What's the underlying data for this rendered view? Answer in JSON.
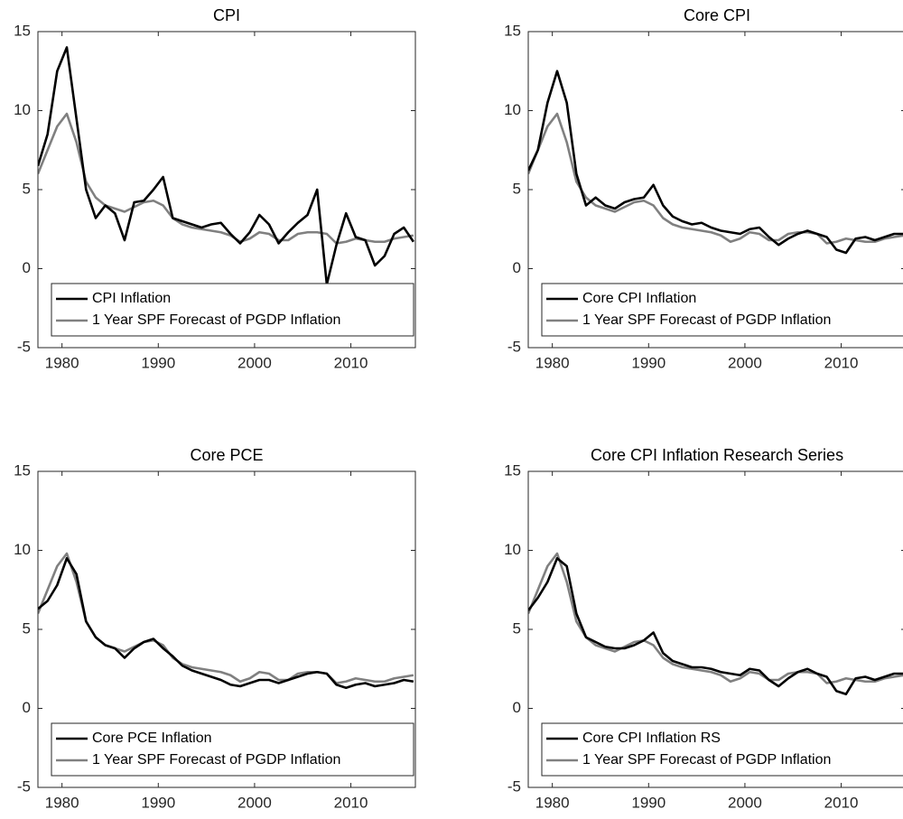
{
  "chart_data": [
    {
      "type": "line",
      "title": "CPI",
      "x": [
        1977.5,
        1978.5,
        1979.5,
        1980.5,
        1981.5,
        1982.5,
        1983.5,
        1984.5,
        1985.5,
        1986.5,
        1987.5,
        1988.5,
        1989.5,
        1990.5,
        1991.5,
        1992.5,
        1993.5,
        1994.5,
        1995.5,
        1996.5,
        1997.5,
        1998.5,
        1999.5,
        2000.5,
        2001.5,
        2002.5,
        2003.5,
        2004.5,
        2005.5,
        2006.5,
        2007.5,
        2008.5,
        2009.5,
        2010.5,
        2011.5,
        2012.5,
        2013.5,
        2014.5,
        2015.5,
        2016.5
      ],
      "series": [
        {
          "name": "CPI Inflation",
          "color": "#000000",
          "values": [
            6.5,
            8.5,
            12.5,
            14.0,
            9.5,
            5.0,
            3.2,
            4.0,
            3.5,
            1.8,
            4.2,
            4.3,
            5.0,
            5.8,
            3.2,
            3.0,
            2.8,
            2.6,
            2.8,
            2.9,
            2.2,
            1.6,
            2.3,
            3.4,
            2.8,
            1.6,
            2.3,
            2.9,
            3.4,
            5.0,
            -1.0,
            1.5,
            3.5,
            2.0,
            1.8,
            0.2,
            0.8,
            2.2,
            2.6,
            1.7
          ]
        },
        {
          "name": "1 Year SPF Forecast of PGDP Inflation",
          "color": "#808080",
          "values": [
            6.0,
            7.5,
            9.0,
            9.8,
            8.0,
            5.5,
            4.5,
            4.0,
            3.8,
            3.6,
            3.9,
            4.2,
            4.3,
            4.0,
            3.2,
            2.8,
            2.6,
            2.5,
            2.4,
            2.3,
            2.1,
            1.7,
            1.9,
            2.3,
            2.2,
            1.8,
            1.8,
            2.2,
            2.3,
            2.3,
            2.2,
            1.6,
            1.7,
            1.9,
            1.8,
            1.7,
            1.7,
            1.9,
            2.0,
            2.1
          ]
        }
      ],
      "xlim": [
        1977.5,
        2016.7
      ],
      "ylim": [
        -5,
        15
      ],
      "xticks": [
        1980,
        1990,
        2000,
        2010
      ],
      "yticks": [
        -5,
        0,
        5,
        10,
        15
      ],
      "legend": "lower left"
    },
    {
      "type": "line",
      "title": "Core CPI",
      "x": [
        1977.5,
        1978.5,
        1979.5,
        1980.5,
        1981.5,
        1982.5,
        1983.5,
        1984.5,
        1985.5,
        1986.5,
        1987.5,
        1988.5,
        1989.5,
        1990.5,
        1991.5,
        1992.5,
        1993.5,
        1994.5,
        1995.5,
        1996.5,
        1997.5,
        1998.5,
        1999.5,
        2000.5,
        2001.5,
        2002.5,
        2003.5,
        2004.5,
        2005.5,
        2006.5,
        2007.5,
        2008.5,
        2009.5,
        2010.5,
        2011.5,
        2012.5,
        2013.5,
        2014.5,
        2015.5,
        2016.5
      ],
      "series": [
        {
          "name": "Core CPI Inflation",
          "color": "#000000",
          "values": [
            6.2,
            7.5,
            10.5,
            12.5,
            10.5,
            6.0,
            4.0,
            4.5,
            4.0,
            3.8,
            4.2,
            4.4,
            4.5,
            5.3,
            4.0,
            3.3,
            3.0,
            2.8,
            2.9,
            2.6,
            2.4,
            2.3,
            2.2,
            2.5,
            2.6,
            2.0,
            1.5,
            1.9,
            2.2,
            2.4,
            2.2,
            2.0,
            1.2,
            1.0,
            1.9,
            2.0,
            1.8,
            2.0,
            2.2,
            2.2
          ]
        },
        {
          "name": "1 Year SPF Forecast of PGDP Inflation",
          "color": "#808080",
          "values": [
            6.0,
            7.5,
            9.0,
            9.8,
            8.0,
            5.5,
            4.5,
            4.0,
            3.8,
            3.6,
            3.9,
            4.2,
            4.3,
            4.0,
            3.2,
            2.8,
            2.6,
            2.5,
            2.4,
            2.3,
            2.1,
            1.7,
            1.9,
            2.3,
            2.2,
            1.8,
            1.8,
            2.2,
            2.3,
            2.3,
            2.2,
            1.6,
            1.7,
            1.9,
            1.8,
            1.7,
            1.7,
            1.9,
            2.0,
            2.1
          ]
        }
      ],
      "xlim": [
        1977.5,
        2016.7
      ],
      "ylim": [
        -5,
        15
      ],
      "xticks": [
        1980,
        1990,
        2000,
        2010
      ],
      "yticks": [
        -5,
        0,
        5,
        10,
        15
      ],
      "legend": "lower left"
    },
    {
      "type": "line",
      "title": "Core PCE",
      "x": [
        1977.5,
        1978.5,
        1979.5,
        1980.5,
        1981.5,
        1982.5,
        1983.5,
        1984.5,
        1985.5,
        1986.5,
        1987.5,
        1988.5,
        1989.5,
        1990.5,
        1991.5,
        1992.5,
        1993.5,
        1994.5,
        1995.5,
        1996.5,
        1997.5,
        1998.5,
        1999.5,
        2000.5,
        2001.5,
        2002.5,
        2003.5,
        2004.5,
        2005.5,
        2006.5,
        2007.5,
        2008.5,
        2009.5,
        2010.5,
        2011.5,
        2012.5,
        2013.5,
        2014.5,
        2015.5,
        2016.5
      ],
      "series": [
        {
          "name": "Core PCE Inflation",
          "color": "#000000",
          "values": [
            6.3,
            6.8,
            7.8,
            9.5,
            8.5,
            5.5,
            4.5,
            4.0,
            3.8,
            3.2,
            3.8,
            4.2,
            4.4,
            3.8,
            3.3,
            2.7,
            2.4,
            2.2,
            2.0,
            1.8,
            1.5,
            1.4,
            1.6,
            1.8,
            1.8,
            1.6,
            1.8,
            2.0,
            2.2,
            2.3,
            2.2,
            1.5,
            1.3,
            1.5,
            1.6,
            1.4,
            1.5,
            1.6,
            1.8,
            1.7
          ]
        },
        {
          "name": "1 Year SPF Forecast of PGDP Inflation",
          "color": "#808080",
          "values": [
            6.0,
            7.5,
            9.0,
            9.8,
            8.0,
            5.5,
            4.5,
            4.0,
            3.8,
            3.6,
            3.9,
            4.2,
            4.3,
            4.0,
            3.2,
            2.8,
            2.6,
            2.5,
            2.4,
            2.3,
            2.1,
            1.7,
            1.9,
            2.3,
            2.2,
            1.8,
            1.8,
            2.2,
            2.3,
            2.3,
            2.2,
            1.6,
            1.7,
            1.9,
            1.8,
            1.7,
            1.7,
            1.9,
            2.0,
            2.1
          ]
        }
      ],
      "xlim": [
        1977.5,
        2016.7
      ],
      "ylim": [
        -5,
        15
      ],
      "xticks": [
        1980,
        1990,
        2000,
        2010
      ],
      "yticks": [
        -5,
        0,
        5,
        10,
        15
      ],
      "legend": "lower left"
    },
    {
      "type": "line",
      "title": "Core CPI Inflation Research Series",
      "x": [
        1977.5,
        1978.5,
        1979.5,
        1980.5,
        1981.5,
        1982.5,
        1983.5,
        1984.5,
        1985.5,
        1986.5,
        1987.5,
        1988.5,
        1989.5,
        1990.5,
        1991.5,
        1992.5,
        1993.5,
        1994.5,
        1995.5,
        1996.5,
        1997.5,
        1998.5,
        1999.5,
        2000.5,
        2001.5,
        2002.5,
        2003.5,
        2004.5,
        2005.5,
        2006.5,
        2007.5,
        2008.5,
        2009.5,
        2010.5,
        2011.5,
        2012.5,
        2013.5,
        2014.5,
        2015.5,
        2016.5
      ],
      "series": [
        {
          "name": "Core CPI Inflation RS",
          "color": "#000000",
          "values": [
            6.2,
            7.0,
            8.0,
            9.5,
            9.0,
            6.0,
            4.5,
            4.2,
            3.9,
            3.8,
            3.8,
            4.0,
            4.3,
            4.8,
            3.5,
            3.0,
            2.8,
            2.6,
            2.6,
            2.5,
            2.3,
            2.2,
            2.1,
            2.5,
            2.4,
            1.8,
            1.4,
            1.9,
            2.3,
            2.5,
            2.2,
            2.0,
            1.1,
            0.9,
            1.9,
            2.0,
            1.8,
            2.0,
            2.2,
            2.2
          ]
        },
        {
          "name": "1 Year SPF Forecast of PGDP Inflation",
          "color": "#808080",
          "values": [
            6.0,
            7.5,
            9.0,
            9.8,
            8.0,
            5.5,
            4.5,
            4.0,
            3.8,
            3.6,
            3.9,
            4.2,
            4.3,
            4.0,
            3.2,
            2.8,
            2.6,
            2.5,
            2.4,
            2.3,
            2.1,
            1.7,
            1.9,
            2.3,
            2.2,
            1.8,
            1.8,
            2.2,
            2.3,
            2.3,
            2.2,
            1.6,
            1.7,
            1.9,
            1.8,
            1.7,
            1.7,
            1.9,
            2.0,
            2.1
          ]
        }
      ],
      "xlim": [
        1977.5,
        2016.7
      ],
      "ylim": [
        -5,
        15
      ],
      "xticks": [
        1980,
        1990,
        2000,
        2010
      ],
      "yticks": [
        -5,
        0,
        5,
        10,
        15
      ],
      "legend": "lower left"
    }
  ]
}
